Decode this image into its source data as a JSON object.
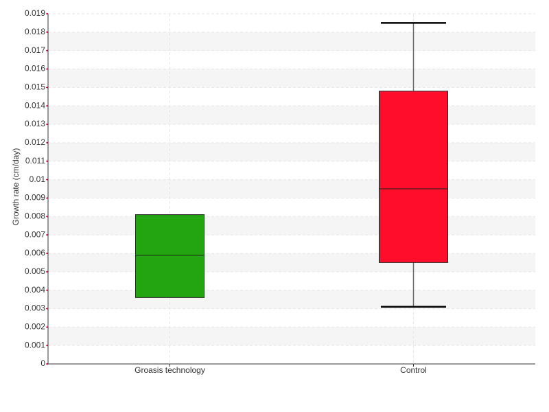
{
  "chart_data": {
    "type": "box",
    "y_label": "Growth rate (cm/day)",
    "categories": [
      "Groasis technology",
      "Control"
    ],
    "boxes": [
      {
        "q1": 0.0036,
        "median": 0.0059,
        "q3": 0.0081,
        "color": "#22a511"
      },
      {
        "min": 0.0031,
        "q1": 0.0055,
        "median": 0.0095,
        "q3": 0.0148,
        "max": 0.0185,
        "color": "#ff0d2a"
      }
    ],
    "ylim": [
      0,
      0.019
    ],
    "yticks": [
      0,
      0.001,
      0.002,
      0.003,
      0.004,
      0.005,
      0.006,
      0.007,
      0.008,
      0.009,
      0.01,
      0.011,
      0.012,
      0.013,
      0.014,
      0.015,
      0.016,
      0.017,
      0.018,
      0.019
    ],
    "grid": true
  }
}
